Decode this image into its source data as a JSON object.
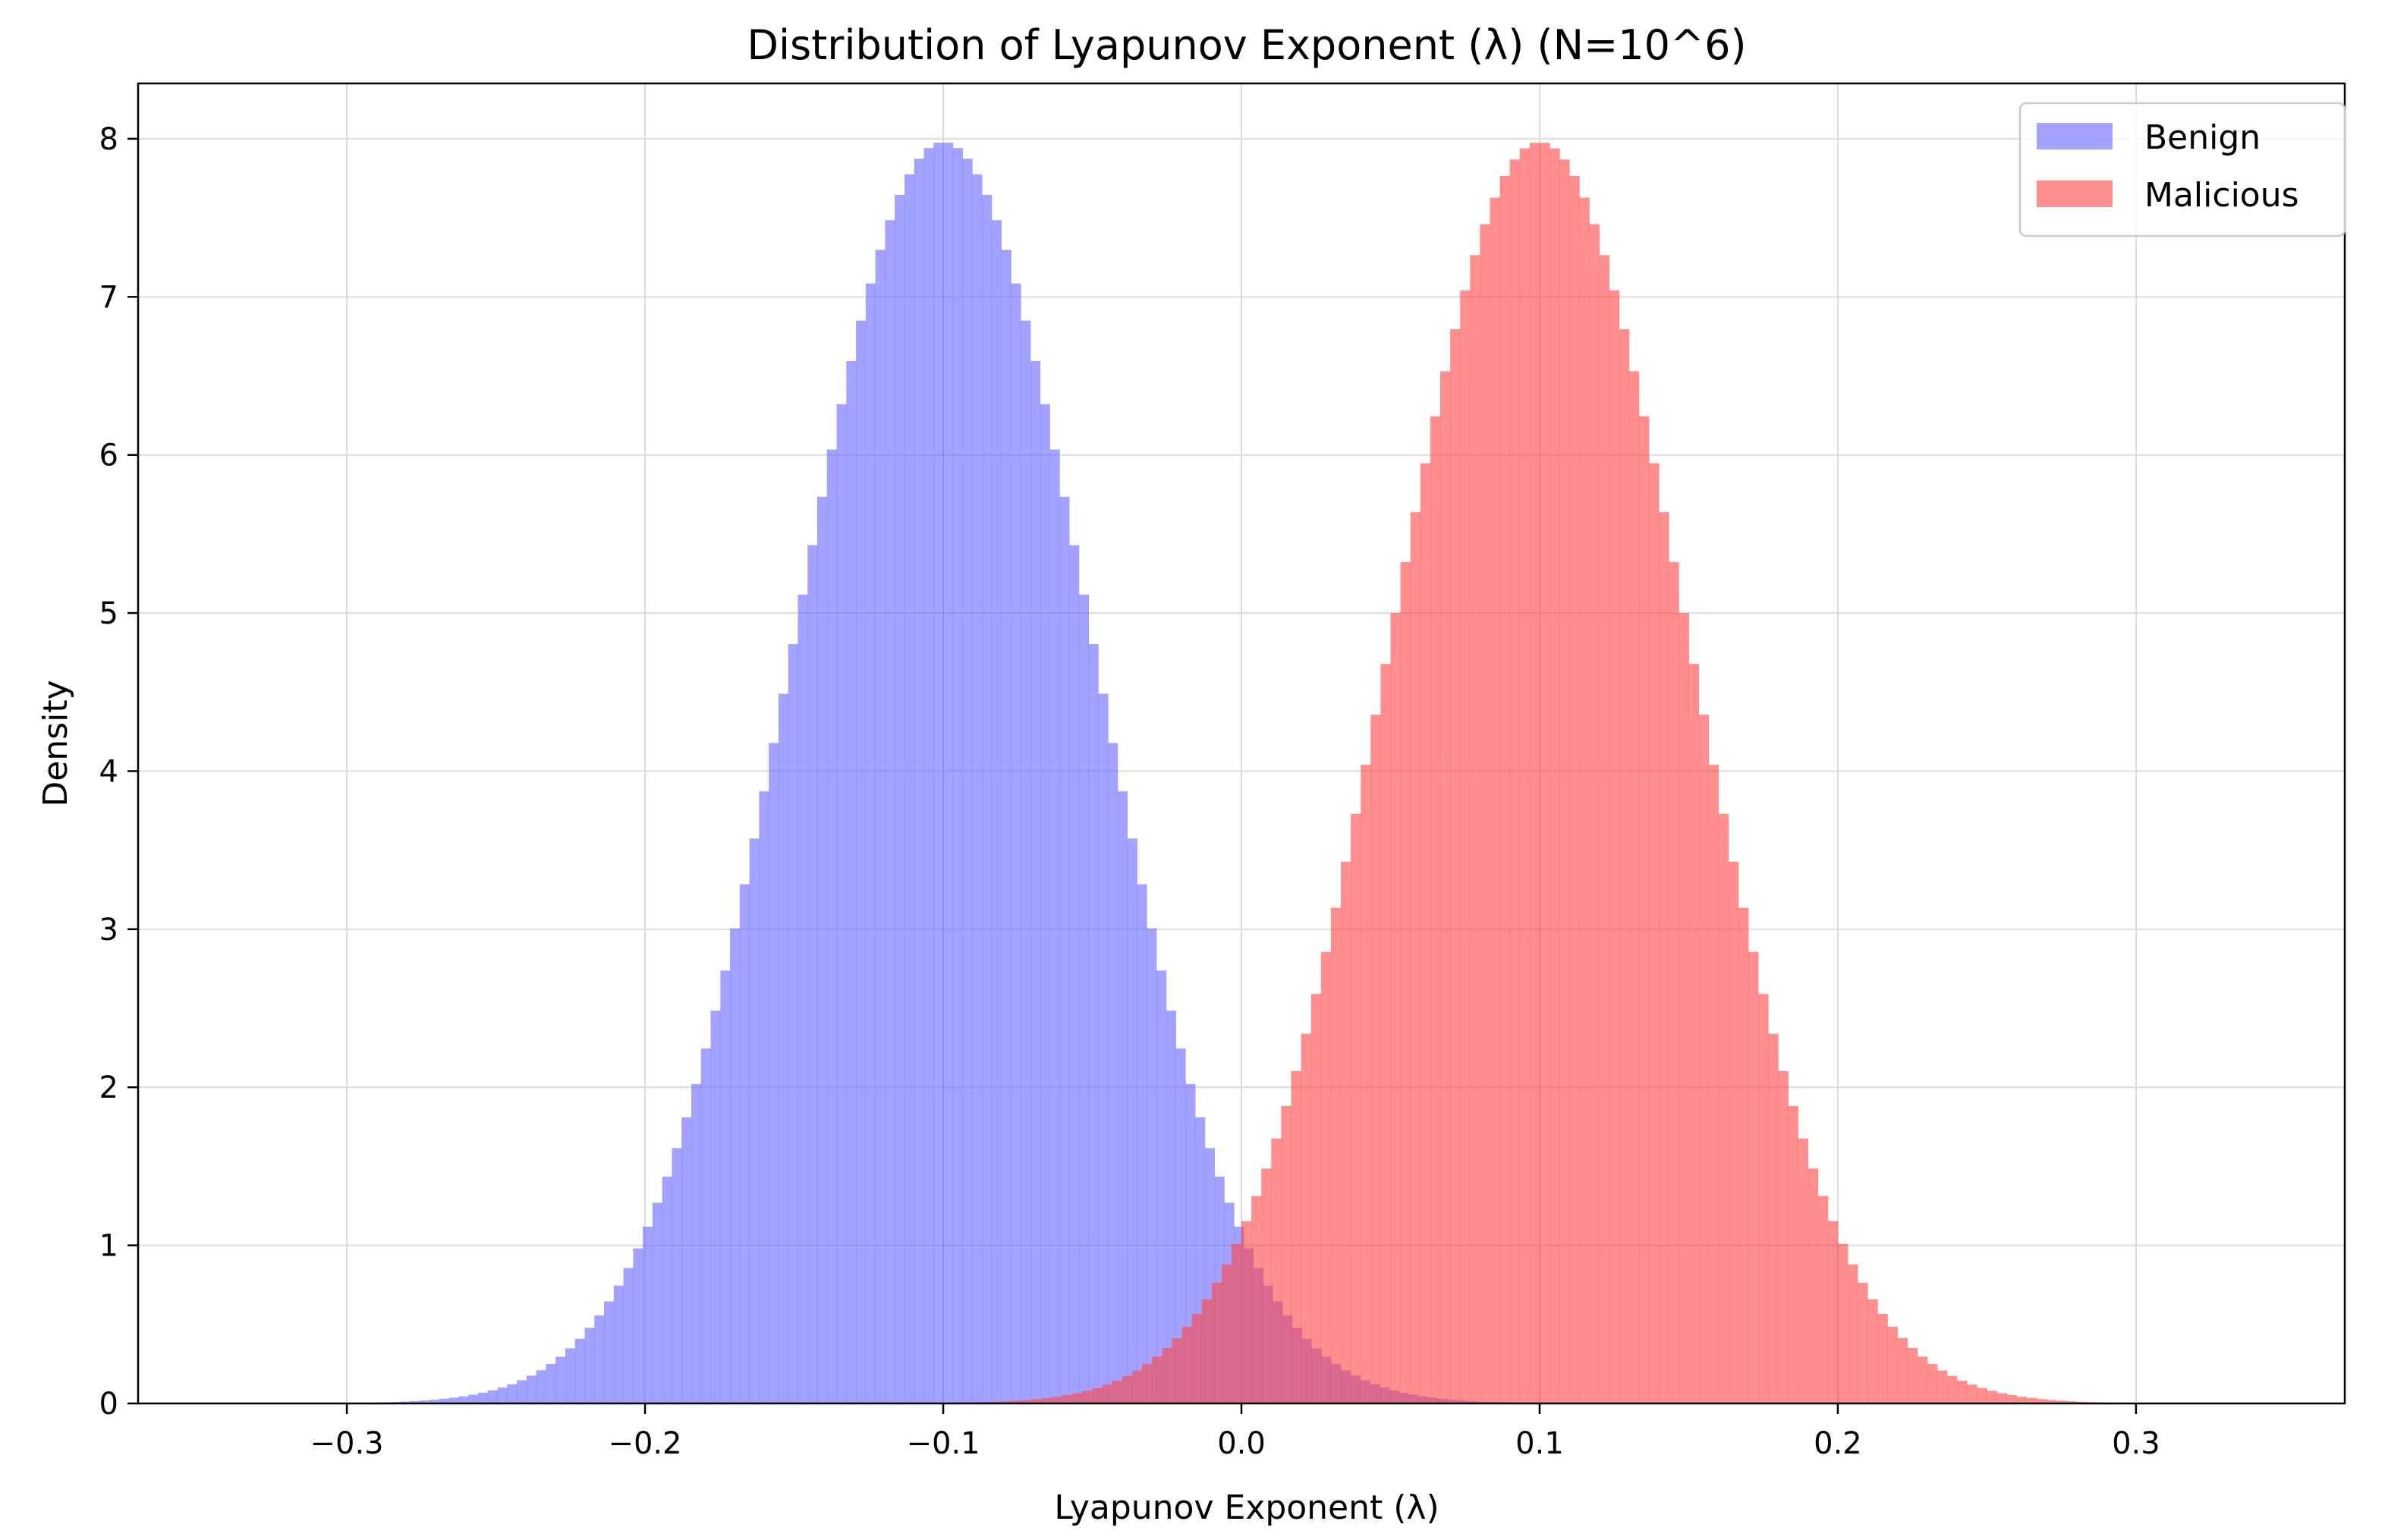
{
  "chart_data": {
    "type": "histogram",
    "title": "Distribution of Lyapunov Exponent (λ) (N=10^6)",
    "xlabel": "Lyapunov Exponent (λ)",
    "ylabel": "Density",
    "xlim": [
      -0.37,
      0.37
    ],
    "ylim": [
      0,
      8.35
    ],
    "xticks": [
      -0.3,
      -0.2,
      -0.1,
      0.0,
      0.1,
      0.2,
      0.3
    ],
    "xtick_labels": [
      "−0.3",
      "−0.2",
      "−0.1",
      "0.0",
      "0.1",
      "0.2",
      "0.3"
    ],
    "yticks": [
      0,
      1,
      2,
      3,
      4,
      5,
      6,
      7,
      8
    ],
    "ytick_labels": [
      "0",
      "1",
      "2",
      "3",
      "4",
      "5",
      "6",
      "7",
      "8"
    ],
    "grid": true,
    "legend_position": "upper right",
    "bins": 120,
    "series": [
      {
        "name": "Benign",
        "color": "#6666ff",
        "opacity": 0.6,
        "mean": -0.1,
        "std": 0.05,
        "range": [
          -0.295,
          0.095
        ]
      },
      {
        "name": "Malicious",
        "color": "#ff4444",
        "opacity": 0.6,
        "mean": 0.1,
        "std": 0.05,
        "range": [
          -0.1,
          0.3
        ]
      }
    ]
  }
}
